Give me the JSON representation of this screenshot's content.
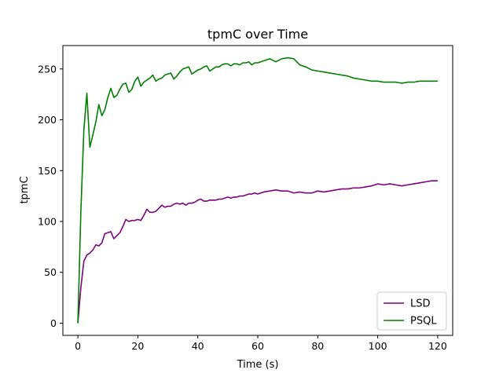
{
  "chart_data": {
    "type": "line",
    "title": "tpmC over Time",
    "xlabel": "Time (s)",
    "ylabel": "tpmC",
    "xlim": [
      -5,
      125
    ],
    "ylim": [
      -12,
      273
    ],
    "xticks": [
      0,
      20,
      40,
      60,
      80,
      100,
      120
    ],
    "yticks": [
      0,
      50,
      100,
      150,
      200,
      250
    ],
    "grid": false,
    "legend_position": "bottom-right",
    "series": [
      {
        "name": "LSD",
        "color": "#800080",
        "x": [
          0,
          1,
          2,
          3,
          4,
          5,
          6,
          7,
          8,
          9,
          10,
          11,
          12,
          13,
          14,
          15,
          16,
          17,
          18,
          19,
          20,
          21,
          22,
          23,
          24,
          25,
          26,
          27,
          28,
          29,
          30,
          31,
          32,
          33,
          34,
          35,
          36,
          37,
          38,
          39,
          40,
          41,
          42,
          43,
          44,
          45,
          46,
          47,
          48,
          49,
          50,
          51,
          52,
          53,
          54,
          55,
          56,
          57,
          58,
          59,
          60,
          62,
          64,
          66,
          68,
          70,
          72,
          74,
          76,
          78,
          80,
          82,
          84,
          86,
          88,
          90,
          92,
          94,
          96,
          98,
          100,
          102,
          104,
          106,
          108,
          110,
          112,
          114,
          116,
          118,
          120
        ],
        "values": [
          0,
          35,
          61,
          67,
          69,
          72,
          77,
          76,
          79,
          88,
          89,
          90,
          83,
          86,
          89,
          95,
          102,
          100,
          101,
          101,
          102,
          101,
          106,
          112,
          109,
          109,
          110,
          113,
          116,
          114,
          115,
          115,
          117,
          118,
          117,
          118,
          116,
          118,
          118,
          119,
          121,
          122,
          120,
          120,
          121,
          121,
          121,
          122,
          122,
          123,
          124,
          123,
          124,
          124,
          125,
          125,
          126,
          127,
          127,
          128,
          127,
          129,
          130,
          131,
          130,
          130,
          128,
          129,
          128,
          128,
          130,
          129,
          130,
          131,
          132,
          132,
          133,
          133,
          134,
          135,
          137,
          136,
          137,
          136,
          135,
          136,
          137,
          138,
          139,
          140,
          140
        ]
      },
      {
        "name": "PSQL",
        "color": "#008000",
        "x": [
          0,
          1,
          2,
          3,
          4,
          5,
          6,
          7,
          8,
          9,
          10,
          11,
          12,
          13,
          14,
          15,
          16,
          17,
          18,
          19,
          20,
          21,
          22,
          23,
          24,
          25,
          26,
          27,
          28,
          29,
          30,
          31,
          32,
          33,
          34,
          35,
          36,
          37,
          38,
          39,
          40,
          41,
          42,
          43,
          44,
          45,
          46,
          47,
          48,
          49,
          50,
          51,
          52,
          53,
          54,
          55,
          56,
          57,
          58,
          59,
          60,
          62,
          64,
          66,
          68,
          70,
          72,
          74,
          76,
          78,
          80,
          82,
          84,
          86,
          88,
          90,
          92,
          94,
          96,
          98,
          100,
          102,
          104,
          106,
          108,
          110,
          112,
          114,
          116,
          118,
          120
        ],
        "values": [
          0,
          110,
          190,
          226,
          173,
          185,
          198,
          215,
          204,
          210,
          222,
          231,
          222,
          224,
          230,
          235,
          236,
          227,
          230,
          238,
          242,
          233,
          237,
          239,
          241,
          244,
          238,
          240,
          241,
          244,
          245,
          246,
          240,
          243,
          247,
          250,
          251,
          252,
          245,
          247,
          249,
          250,
          252,
          253,
          248,
          250,
          252,
          252,
          254,
          255,
          255,
          253,
          255,
          255,
          254,
          256,
          256,
          257,
          254,
          256,
          256,
          258,
          260,
          257,
          260,
          261,
          260,
          254,
          252,
          249,
          248,
          247,
          246,
          245,
          244,
          243,
          241,
          240,
          239,
          238,
          238,
          237,
          237,
          237,
          236,
          237,
          237,
          238,
          238,
          238,
          238
        ]
      }
    ]
  }
}
